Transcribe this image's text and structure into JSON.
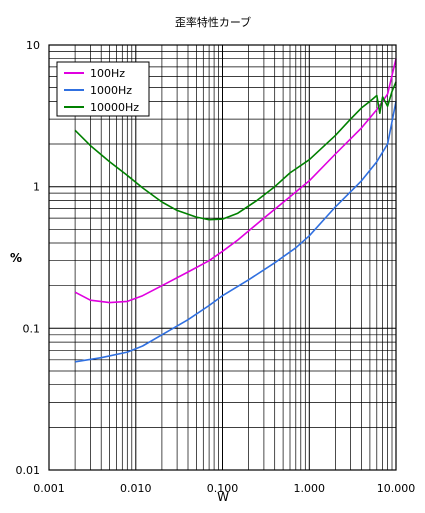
{
  "chart_data": {
    "type": "line",
    "title": "歪率特性カーブ",
    "xlabel": "W",
    "ylabel": "%",
    "xscale": "log",
    "yscale": "log",
    "xlim": [
      0.001,
      10
    ],
    "ylim": [
      0.01,
      10
    ],
    "grid": true,
    "legend_position": "top-left",
    "x_ticks": [
      0.001,
      0.01,
      0.1,
      1,
      10
    ],
    "x_tick_labels": [
      "0.001",
      "0.010",
      "0.100",
      "1.000",
      "10.000"
    ],
    "y_ticks": [
      0.01,
      0.1,
      1,
      10
    ],
    "y_tick_labels": [
      "0.01",
      "0.1",
      "1",
      "10"
    ],
    "series": [
      {
        "name": "100Hz",
        "color": "#e000e0",
        "x": [
          0.002,
          0.003,
          0.005,
          0.008,
          0.012,
          0.02,
          0.04,
          0.07,
          0.1,
          0.15,
          0.3,
          0.6,
          1.0,
          2.0,
          4.0,
          6.0,
          8.0,
          10.0
        ],
        "y": [
          0.18,
          0.158,
          0.152,
          0.155,
          0.17,
          0.2,
          0.25,
          0.3,
          0.35,
          0.42,
          0.6,
          0.85,
          1.1,
          1.7,
          2.6,
          3.5,
          4.5,
          8.0
        ]
      },
      {
        "name": "1000Hz",
        "color": "#3070e0",
        "x": [
          0.002,
          0.004,
          0.008,
          0.012,
          0.02,
          0.04,
          0.07,
          0.1,
          0.2,
          0.4,
          0.7,
          1.0,
          2.0,
          4.0,
          6.0,
          8.0,
          10.0
        ],
        "y": [
          0.058,
          0.062,
          0.068,
          0.075,
          0.09,
          0.115,
          0.145,
          0.17,
          0.22,
          0.29,
          0.37,
          0.45,
          0.72,
          1.1,
          1.5,
          2.0,
          4.0
        ]
      },
      {
        "name": "10000Hz",
        "color": "#008000",
        "x": [
          0.002,
          0.003,
          0.005,
          0.008,
          0.012,
          0.02,
          0.03,
          0.05,
          0.07,
          0.1,
          0.15,
          0.25,
          0.4,
          0.6,
          1.0,
          2.0,
          3.0,
          4.0,
          5.0,
          6.0,
          6.5,
          7.0,
          8.0,
          9.0,
          10.0
        ],
        "y": [
          2.5,
          1.95,
          1.5,
          1.2,
          0.98,
          0.78,
          0.68,
          0.61,
          0.585,
          0.59,
          0.65,
          0.8,
          1.0,
          1.25,
          1.55,
          2.3,
          3.0,
          3.6,
          4.0,
          4.4,
          3.3,
          4.3,
          3.7,
          4.7,
          5.5
        ]
      }
    ]
  }
}
